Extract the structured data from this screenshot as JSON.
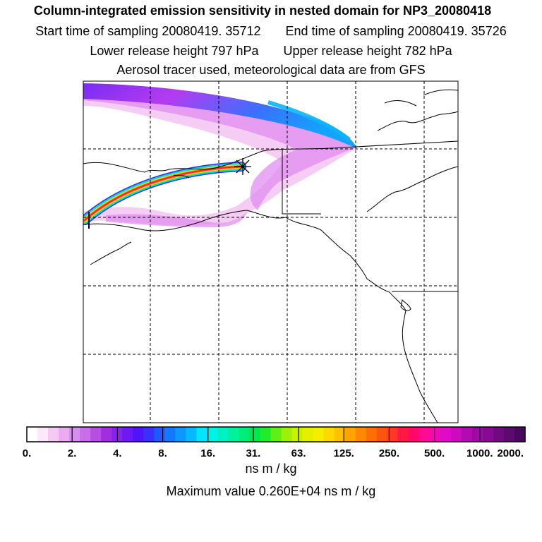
{
  "header": {
    "title": "Column-integrated emission sensitivity in nested domain for NP3_20080418",
    "start_label": "Start time of sampling 20080419. 35712",
    "end_label": "End time of sampling 20080419. 35726",
    "lower_label": "Lower release height  797 hPa",
    "upper_label": "Upper release height  782 hPa",
    "tracer_note": "Aerosol tracer used, meteorological data are from GFS"
  },
  "chart_data": {
    "type": "heatmap",
    "title": "Column-integrated emission sensitivity in nested domain for NP3_20080418",
    "colorbar": {
      "tick_labels": [
        "0.",
        "2.",
        "4.",
        "8.",
        "16.",
        "31.",
        "63.",
        "125.",
        "250.",
        "500.",
        "1000.",
        "2000."
      ],
      "tick_values": [
        0,
        2,
        4,
        8,
        16,
        31,
        63,
        125,
        250,
        500,
        1000,
        2000
      ],
      "colors": [
        "#ffffff",
        "#fde8fb",
        "#f6c8f4",
        "#eeaaf0",
        "#d88ef0",
        "#c86ee8",
        "#b64ee4",
        "#a02ee0",
        "#8a22ee",
        "#6e18f4",
        "#4f14f8",
        "#3a30fa",
        "#2058ff",
        "#1478ff",
        "#0c98ff",
        "#08b8ff",
        "#00e6ff",
        "#00f2e6",
        "#00f2c4",
        "#00f29c",
        "#00ee78",
        "#00e850",
        "#20ec2c",
        "#5ef014",
        "#9cf00a",
        "#c8f000",
        "#e4f000",
        "#f6ee00",
        "#ffd800",
        "#ffc000",
        "#ffa400",
        "#ff8800",
        "#ff6e00",
        "#ff5410",
        "#ff3828",
        "#ff1840",
        "#ff0a6a",
        "#ff0a94",
        "#f00ab4",
        "#e00aca",
        "#cc0ac0",
        "#b40ab2",
        "#9c0aa2",
        "#860a92",
        "#700a80",
        "#5c0a6e",
        "#48085c"
      ],
      "units": "ns m / kg"
    },
    "max_value_label": "Maximum value  0.260E+04 ns m / kg",
    "max_value": 2600,
    "map": {
      "gridlines": "dashed",
      "release_marker": "asterisk",
      "region": "North Pacific / Alaska / Western Canada"
    }
  }
}
